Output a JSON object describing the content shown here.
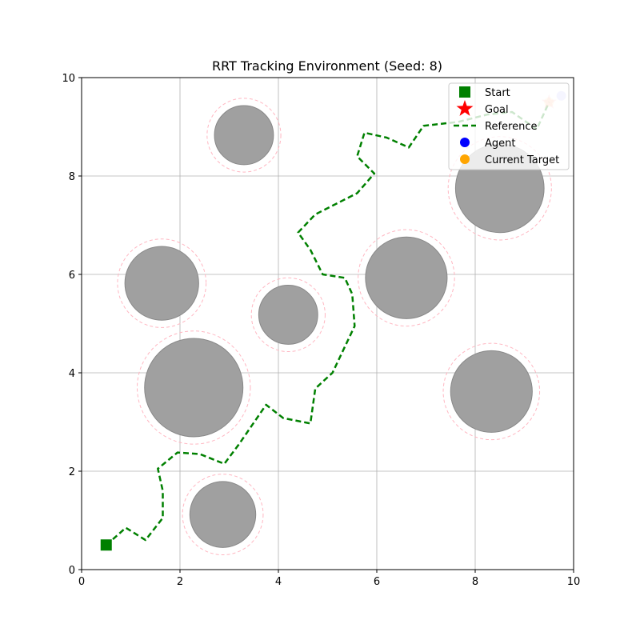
{
  "chart_data": {
    "type": "scatter",
    "title": "RRT Tracking Environment (Seed: 8)",
    "xlabel": "",
    "ylabel": "",
    "xlim": [
      0,
      10
    ],
    "ylim": [
      0,
      10
    ],
    "xticks": [
      0,
      2,
      4,
      6,
      8,
      10
    ],
    "yticks": [
      0,
      2,
      4,
      6,
      8,
      10
    ],
    "grid": true,
    "legend_position": "top-right",
    "legend": [
      {
        "label": "Start",
        "marker": "square",
        "color": "#008000"
      },
      {
        "label": "Goal",
        "marker": "star",
        "color": "#ff0000"
      },
      {
        "label": "Reference",
        "marker": "dashed-line",
        "color": "#008000"
      },
      {
        "label": "Agent",
        "marker": "circle",
        "color": "#0000ff"
      },
      {
        "label": "Current Target",
        "marker": "circle",
        "color": "#ffa500"
      }
    ],
    "obstacles": [
      {
        "x": 3.3,
        "y": 8.83,
        "r": 0.6,
        "safety_r": 0.75
      },
      {
        "x": 8.5,
        "y": 7.75,
        "r": 0.9,
        "safety_r": 1.05
      },
      {
        "x": 1.63,
        "y": 5.82,
        "r": 0.75,
        "safety_r": 0.9
      },
      {
        "x": 4.2,
        "y": 5.18,
        "r": 0.6,
        "safety_r": 0.75
      },
      {
        "x": 6.6,
        "y": 5.93,
        "r": 0.83,
        "safety_r": 0.98
      },
      {
        "x": 2.28,
        "y": 3.7,
        "r": 1.0,
        "safety_r": 1.15
      },
      {
        "x": 8.33,
        "y": 3.62,
        "r": 0.83,
        "safety_r": 0.98
      },
      {
        "x": 2.87,
        "y": 1.12,
        "r": 0.67,
        "safety_r": 0.82
      }
    ],
    "start": {
      "x": 0.5,
      "y": 0.5
    },
    "goal": {
      "x": 9.5,
      "y": 9.5
    },
    "agent": {
      "x": 9.75,
      "y": 9.63
    },
    "current_target": {
      "x": 9.5,
      "y": 9.5
    },
    "reference_path": [
      [
        0.5,
        0.5
      ],
      [
        0.9,
        0.85
      ],
      [
        1.3,
        0.6
      ],
      [
        1.65,
        1.05
      ],
      [
        1.65,
        1.6
      ],
      [
        1.55,
        2.05
      ],
      [
        1.95,
        2.38
      ],
      [
        2.4,
        2.35
      ],
      [
        2.9,
        2.15
      ],
      [
        3.2,
        2.55
      ],
      [
        3.75,
        3.35
      ],
      [
        4.1,
        3.08
      ],
      [
        4.65,
        2.97
      ],
      [
        4.75,
        3.68
      ],
      [
        5.1,
        4.0
      ],
      [
        5.55,
        4.95
      ],
      [
        5.5,
        5.6
      ],
      [
        5.35,
        5.93
      ],
      [
        4.9,
        6.0
      ],
      [
        4.65,
        6.5
      ],
      [
        4.4,
        6.85
      ],
      [
        4.75,
        7.22
      ],
      [
        5.6,
        7.65
      ],
      [
        5.95,
        8.05
      ],
      [
        5.6,
        8.4
      ],
      [
        5.75,
        8.88
      ],
      [
        6.2,
        8.78
      ],
      [
        6.65,
        8.58
      ],
      [
        6.95,
        9.02
      ],
      [
        7.65,
        9.1
      ],
      [
        8.25,
        9.25
      ],
      [
        8.75,
        9.3
      ],
      [
        9.25,
        8.95
      ],
      [
        9.5,
        9.5
      ]
    ]
  },
  "colors": {
    "obstacle_fill": "#a0a0a0",
    "obstacle_edge": "#888888",
    "safety_ring": "#ffb6c1",
    "reference": "#008000",
    "start": "#008000",
    "goal": "#ff0000",
    "agent": "#0000ff",
    "current_target": "#ffa500",
    "grid": "#b0b0b0"
  }
}
